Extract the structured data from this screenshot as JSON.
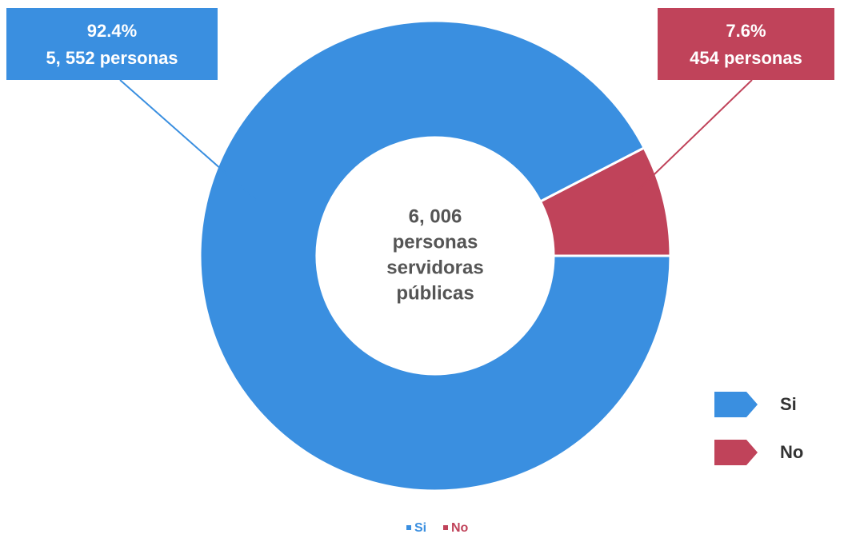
{
  "chart_data": {
    "type": "donut",
    "categories": [
      "Si",
      "No"
    ],
    "values": [
      92.4,
      7.6
    ],
    "value_labels": [
      "92.4%",
      "7.6%"
    ],
    "counts": [
      5552,
      454
    ],
    "count_labels": [
      "5, 552 personas",
      "454 personas"
    ],
    "colors": [
      "#3a8fe0",
      "#c0435a"
    ],
    "center_text": [
      "6, 006",
      "personas",
      "servidoras",
      "públicas"
    ]
  }
}
